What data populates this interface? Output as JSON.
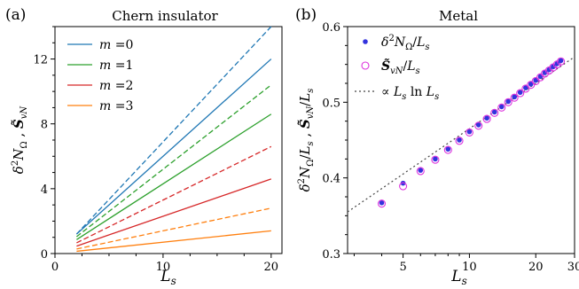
{
  "panels": [
    {
      "tag": "(a)",
      "title": "Chern insulator",
      "xlabel": "L_s",
      "ylabel": "δ²N_Ω , S̃_vN"
    },
    {
      "tag": "(b)",
      "title": "Metal",
      "xlabel": "L_s",
      "ylabel": "δ²N_Ω/L_s , S̃_vN/L_s"
    }
  ],
  "chart_data": [
    {
      "type": "line",
      "title": "Chern insulator",
      "xlabel": "L_s",
      "ylabel": "δ²N_Ω , S̃_vN",
      "xlim": [
        0,
        21
      ],
      "ylim": [
        0,
        14
      ],
      "xticks": [
        0,
        10,
        20
      ],
      "yticks": [
        0,
        4,
        8,
        12
      ],
      "legend_position": "top-left",
      "series": [
        {
          "name": "m =0",
          "color": "#1f77b4",
          "style": "solid",
          "x": [
            2,
            20
          ],
          "y": [
            1.2,
            12.0
          ]
        },
        {
          "name": "",
          "color": "#1f77b4",
          "style": "dashed",
          "x": [
            2,
            20
          ],
          "y": [
            1.2,
            14.0
          ]
        },
        {
          "name": "m =1",
          "color": "#2ca02c",
          "style": "solid",
          "x": [
            2,
            20
          ],
          "y": [
            0.86,
            8.6
          ]
        },
        {
          "name": "",
          "color": "#2ca02c",
          "style": "dashed",
          "x": [
            2,
            20
          ],
          "y": [
            1.04,
            10.4
          ]
        },
        {
          "name": "m =2",
          "color": "#d62728",
          "style": "solid",
          "x": [
            2,
            20
          ],
          "y": [
            0.46,
            4.6
          ]
        },
        {
          "name": "",
          "color": "#d62728",
          "style": "dashed",
          "x": [
            2,
            20
          ],
          "y": [
            0.66,
            6.6
          ]
        },
        {
          "name": "m =3",
          "color": "#ff7f0e",
          "style": "solid",
          "x": [
            2,
            20
          ],
          "y": [
            0.14,
            1.4
          ]
        },
        {
          "name": "",
          "color": "#ff7f0e",
          "style": "dashed",
          "x": [
            2,
            20
          ],
          "y": [
            0.28,
            2.8
          ]
        }
      ]
    },
    {
      "type": "scatter",
      "title": "Metal",
      "xlabel": "L_s",
      "ylabel": "δ²N_Ω/L_s , S̃_vN/L_s",
      "xscale": "log",
      "xlim": [
        2.8,
        30
      ],
      "ylim": [
        0.3,
        0.6
      ],
      "xticks": [
        5,
        10,
        20,
        30
      ],
      "yticks": [
        0.3,
        0.4,
        0.5,
        0.6
      ],
      "legend_position": "top-left",
      "x": [
        4,
        5,
        6,
        7,
        8,
        9,
        10,
        11,
        12,
        13,
        14,
        15,
        16,
        17,
        18,
        19,
        20,
        21,
        22,
        23,
        24,
        25,
        26
      ],
      "series": [
        {
          "name": "δ²N_Ω/L_s",
          "marker": "filled-dot",
          "color": "#3333dd",
          "values": [
            0.367,
            0.393,
            0.41,
            0.425,
            0.438,
            0.45,
            0.461,
            0.47,
            0.479,
            0.487,
            0.494,
            0.501,
            0.507,
            0.513,
            0.519,
            0.524,
            0.529,
            0.534,
            0.539,
            0.543,
            0.547,
            0.551,
            0.555
          ]
        },
        {
          "name": "S̃_vN/L_s",
          "marker": "open-circle",
          "color": "#dd33dd",
          "values": [
            0.366,
            0.389,
            0.409,
            0.424,
            0.437,
            0.449,
            0.46,
            0.469,
            0.478,
            0.486,
            0.493,
            0.5,
            0.506,
            0.512,
            0.518,
            0.523,
            0.528,
            0.533,
            0.538,
            0.542,
            0.546,
            0.55,
            0.554
          ]
        },
        {
          "name": "∝ L_s ln L_s",
          "style": "dotted",
          "color": "#444444",
          "x_fit": [
            2.8,
            30
          ],
          "values_fit": [
            0.355,
            0.56
          ]
        }
      ]
    }
  ]
}
